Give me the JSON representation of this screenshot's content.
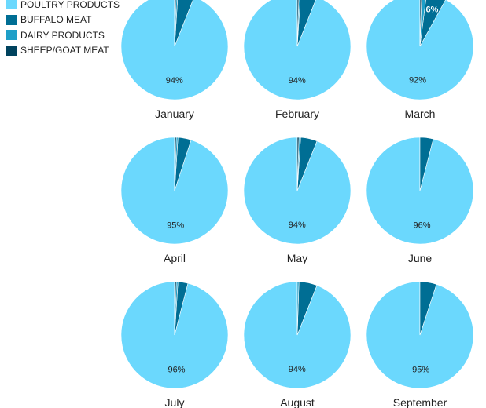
{
  "colors": {
    "poultry": "#6bd8fd",
    "buffalo": "#006e94",
    "dairy": "#1e9fc8",
    "sheep_goat": "#00435e"
  },
  "legend": [
    {
      "label": "POULTRY PRODUCTS",
      "color_key": "poultry"
    },
    {
      "label": "BUFFALO MEAT",
      "color_key": "buffalo"
    },
    {
      "label": "DAIRY PRODUCTS",
      "color_key": "dairy"
    },
    {
      "label": "SHEEP/GOAT MEAT",
      "color_key": "sheep_goat"
    }
  ],
  "chart_data": {
    "type": "pie",
    "series_names": [
      "POULTRY PRODUCTS",
      "BUFFALO MEAT",
      "DAIRY PRODUCTS",
      "SHEEP/GOAT MEAT"
    ],
    "legend_position": "top-left",
    "charts": [
      {
        "month": "January",
        "values": [
          94,
          5,
          0.5,
          0.5
        ],
        "labels": [
          "94%",
          "",
          "",
          ""
        ]
      },
      {
        "month": "February",
        "values": [
          94,
          5,
          0.5,
          0.5
        ],
        "labels": [
          "94%",
          "",
          "",
          ""
        ]
      },
      {
        "month": "March",
        "values": [
          92,
          6,
          1.5,
          0.5
        ],
        "labels": [
          "92%",
          "6%",
          "",
          ""
        ]
      },
      {
        "month": "April",
        "values": [
          95,
          4,
          0.5,
          0.5
        ],
        "labels": [
          "95%",
          "",
          "",
          ""
        ]
      },
      {
        "month": "May",
        "values": [
          94,
          5,
          0.5,
          0.5
        ],
        "labels": [
          "94%",
          "",
          "",
          ""
        ]
      },
      {
        "month": "June",
        "values": [
          96,
          4,
          0,
          0
        ],
        "labels": [
          "96%",
          "",
          "",
          ""
        ]
      },
      {
        "month": "July",
        "values": [
          96,
          3,
          0.5,
          0.5
        ],
        "labels": [
          "96%",
          "",
          "",
          ""
        ]
      },
      {
        "month": "August",
        "values": [
          94,
          5.5,
          0.5,
          0
        ],
        "labels": [
          "94%",
          "",
          "",
          ""
        ]
      },
      {
        "month": "September",
        "values": [
          95,
          5,
          0,
          0
        ],
        "labels": [
          "95%",
          "",
          "",
          ""
        ]
      }
    ]
  }
}
